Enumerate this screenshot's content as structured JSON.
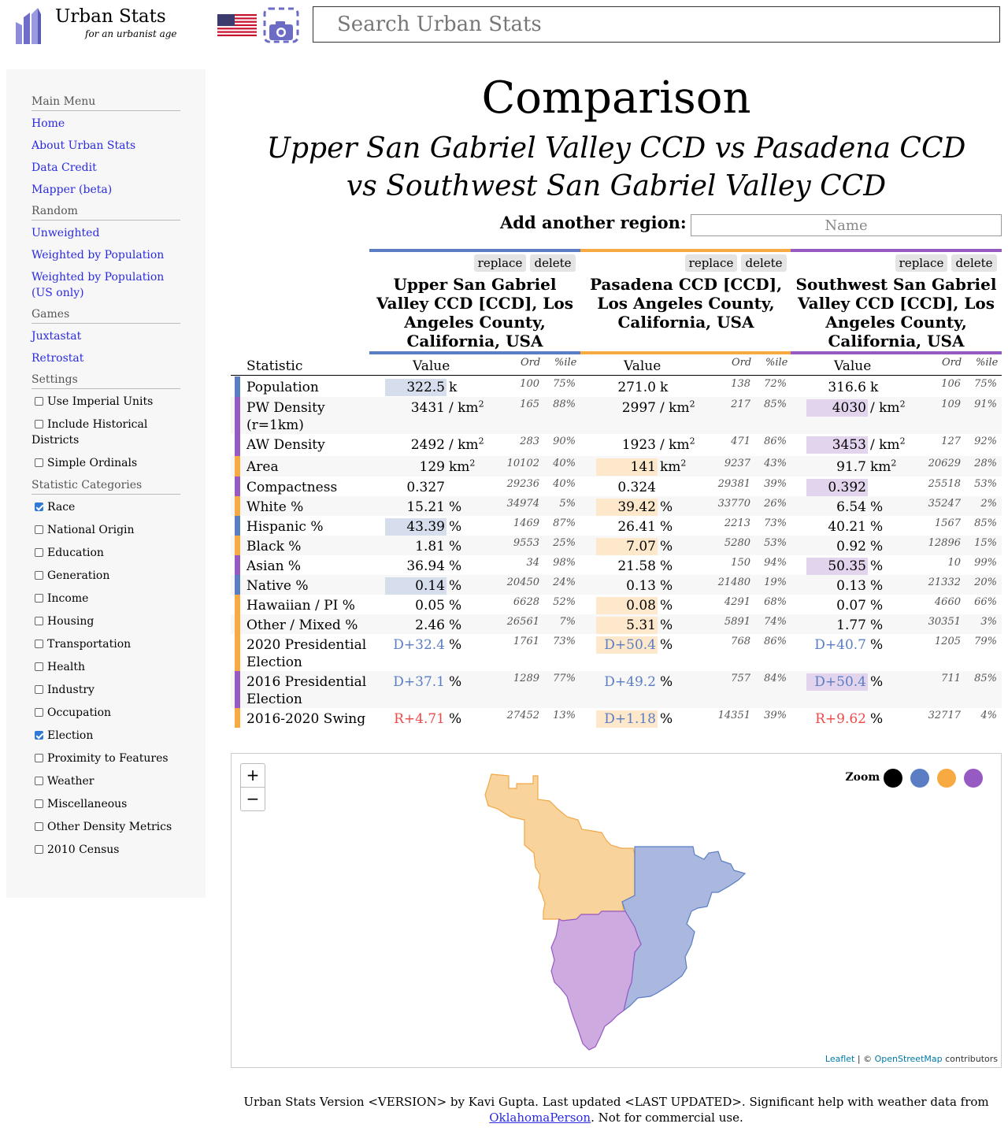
{
  "header": {
    "brand_title": "Urban Stats",
    "brand_subtitle": "for an urbanist age",
    "search_placeholder": "Search Urban Stats"
  },
  "sidebar": {
    "sections": [
      {
        "title": "Main Menu",
        "links": [
          "Home",
          "About Urban Stats",
          "Data Credit",
          "Mapper (beta)"
        ]
      },
      {
        "title": "Random",
        "links": [
          "Unweighted",
          "Weighted by Population",
          "Weighted by Population (US only)"
        ]
      },
      {
        "title": "Games",
        "links": [
          "Juxtastat",
          "Retrostat"
        ]
      }
    ],
    "settings_title": "Settings",
    "settings": [
      {
        "label": "Use Imperial Units",
        "checked": false
      },
      {
        "label": "Include Historical Districts",
        "checked": false
      },
      {
        "label": "Simple Ordinals",
        "checked": false
      }
    ],
    "categories_title": "Statistic Categories",
    "categories": [
      {
        "label": "Race",
        "checked": true
      },
      {
        "label": "National Origin",
        "checked": false
      },
      {
        "label": "Education",
        "checked": false
      },
      {
        "label": "Generation",
        "checked": false
      },
      {
        "label": "Income",
        "checked": false
      },
      {
        "label": "Housing",
        "checked": false
      },
      {
        "label": "Transportation",
        "checked": false
      },
      {
        "label": "Health",
        "checked": false
      },
      {
        "label": "Industry",
        "checked": false
      },
      {
        "label": "Occupation",
        "checked": false
      },
      {
        "label": "Election",
        "checked": true
      },
      {
        "label": "Proximity to Features",
        "checked": false
      },
      {
        "label": "Weather",
        "checked": false
      },
      {
        "label": "Miscellaneous",
        "checked": false
      },
      {
        "label": "Other Density Metrics",
        "checked": false
      },
      {
        "label": "2010 Census",
        "checked": false
      }
    ]
  },
  "main": {
    "title": "Comparison",
    "subtitle": "Upper San Gabriel Valley CCD vs Pasadena CCD vs Southwest San Gabriel Valley CCD",
    "add_region_label": "Add another region:",
    "add_region_placeholder": "Name",
    "replace_label": "replace",
    "delete_label": "delete",
    "columns": [
      {
        "name": "Upper San Gabriel Valley CCD [CCD], Los Angeles County, California, USA",
        "color": "#5a7dc3",
        "highlight": "#d6deed"
      },
      {
        "name": "Pasadena CCD [CCD], Los Angeles County, California, USA",
        "color": "#f7aa41",
        "highlight": "#fde8cc"
      },
      {
        "name": "Southwest San Gabriel Valley CCD [CCD], Los Angeles County, California, USA",
        "color": "#975ac3",
        "highlight": "#e3d4ee"
      }
    ],
    "headers": {
      "statistic": "Statistic",
      "value": "Value",
      "ord": "Ord",
      "pctile": "%ile"
    },
    "rows": [
      {
        "name": "Population",
        "winner": 0,
        "cells": [
          {
            "value": "322.5",
            "unit": "k",
            "ord": "100",
            "pct": "75%"
          },
          {
            "value": "271.0",
            "unit": "k",
            "ord": "138",
            "pct": "72%"
          },
          {
            "value": "316.6",
            "unit": "k",
            "ord": "106",
            "pct": "75%"
          }
        ]
      },
      {
        "name": "PW Density (r=1km)",
        "winner": 2,
        "cells": [
          {
            "value": "3431",
            "unit": "/ km²",
            "ord": "165",
            "pct": "88%"
          },
          {
            "value": "2997",
            "unit": "/ km²",
            "ord": "217",
            "pct": "85%"
          },
          {
            "value": "4030",
            "unit": "/ km²",
            "ord": "109",
            "pct": "91%"
          }
        ]
      },
      {
        "name": "AW Density",
        "winner": 2,
        "cells": [
          {
            "value": "2492",
            "unit": "/ km²",
            "ord": "283",
            "pct": "90%"
          },
          {
            "value": "1923",
            "unit": "/ km²",
            "ord": "471",
            "pct": "86%"
          },
          {
            "value": "3453",
            "unit": "/ km²",
            "ord": "127",
            "pct": "92%"
          }
        ]
      },
      {
        "name": "Area",
        "winner": 1,
        "cells": [
          {
            "value": "129",
            "unit": "km²",
            "ord": "10102",
            "pct": "40%"
          },
          {
            "value": "141",
            "unit": "km²",
            "ord": "9237",
            "pct": "43%"
          },
          {
            "value": "91.7",
            "unit": "km²",
            "ord": "20629",
            "pct": "28%"
          }
        ]
      },
      {
        "name": "Compactness",
        "winner": 2,
        "cells": [
          {
            "value": "0.327",
            "unit": "",
            "ord": "29236",
            "pct": "40%"
          },
          {
            "value": "0.324",
            "unit": "",
            "ord": "29381",
            "pct": "39%"
          },
          {
            "value": "0.392",
            "unit": "",
            "ord": "25518",
            "pct": "53%"
          }
        ]
      },
      {
        "name": "White %",
        "winner": 1,
        "cells": [
          {
            "value": "15.21",
            "unit": "%",
            "ord": "34974",
            "pct": "5%"
          },
          {
            "value": "39.42",
            "unit": "%",
            "ord": "33770",
            "pct": "26%"
          },
          {
            "value": "6.54",
            "unit": "%",
            "ord": "35247",
            "pct": "2%"
          }
        ]
      },
      {
        "name": "Hispanic %",
        "winner": 0,
        "cells": [
          {
            "value": "43.39",
            "unit": "%",
            "ord": "1469",
            "pct": "87%"
          },
          {
            "value": "26.41",
            "unit": "%",
            "ord": "2213",
            "pct": "73%"
          },
          {
            "value": "40.21",
            "unit": "%",
            "ord": "1567",
            "pct": "85%"
          }
        ]
      },
      {
        "name": "Black %",
        "winner": 1,
        "cells": [
          {
            "value": "1.81",
            "unit": "%",
            "ord": "9553",
            "pct": "25%"
          },
          {
            "value": "7.07",
            "unit": "%",
            "ord": "5280",
            "pct": "53%"
          },
          {
            "value": "0.92",
            "unit": "%",
            "ord": "12896",
            "pct": "15%"
          }
        ]
      },
      {
        "name": "Asian %",
        "winner": 2,
        "cells": [
          {
            "value": "36.94",
            "unit": "%",
            "ord": "34",
            "pct": "98%"
          },
          {
            "value": "21.58",
            "unit": "%",
            "ord": "150",
            "pct": "94%"
          },
          {
            "value": "50.35",
            "unit": "%",
            "ord": "10",
            "pct": "99%"
          }
        ]
      },
      {
        "name": "Native %",
        "winner": 0,
        "cells": [
          {
            "value": "0.14",
            "unit": "%",
            "ord": "20450",
            "pct": "24%"
          },
          {
            "value": "0.13",
            "unit": "%",
            "ord": "21480",
            "pct": "19%"
          },
          {
            "value": "0.13",
            "unit": "%",
            "ord": "21332",
            "pct": "20%"
          }
        ]
      },
      {
        "name": "Hawaiian / PI %",
        "winner": 1,
        "cells": [
          {
            "value": "0.05",
            "unit": "%",
            "ord": "6628",
            "pct": "52%"
          },
          {
            "value": "0.08",
            "unit": "%",
            "ord": "4291",
            "pct": "68%"
          },
          {
            "value": "0.07",
            "unit": "%",
            "ord": "4660",
            "pct": "66%"
          }
        ]
      },
      {
        "name": "Other / Mixed %",
        "winner": 1,
        "cells": [
          {
            "value": "2.46",
            "unit": "%",
            "ord": "26561",
            "pct": "7%"
          },
          {
            "value": "5.31",
            "unit": "%",
            "ord": "5891",
            "pct": "74%"
          },
          {
            "value": "1.77",
            "unit": "%",
            "ord": "30351",
            "pct": "3%"
          }
        ]
      },
      {
        "name": "2020 Presidential Election",
        "winner": 1,
        "cells": [
          {
            "value": "D+32.4",
            "unit": "%",
            "ord": "1761",
            "pct": "73%",
            "color": "#5a7dc3"
          },
          {
            "value": "D+50.4",
            "unit": "%",
            "ord": "768",
            "pct": "86%",
            "color": "#5a7dc3"
          },
          {
            "value": "D+40.7",
            "unit": "%",
            "ord": "1205",
            "pct": "79%",
            "color": "#5a7dc3"
          }
        ]
      },
      {
        "name": "2016 Presidential Election",
        "winner": 2,
        "cells": [
          {
            "value": "D+37.1",
            "unit": "%",
            "ord": "1289",
            "pct": "77%",
            "color": "#5a7dc3"
          },
          {
            "value": "D+49.2",
            "unit": "%",
            "ord": "757",
            "pct": "84%",
            "color": "#5a7dc3"
          },
          {
            "value": "D+50.4",
            "unit": "%",
            "ord": "711",
            "pct": "85%",
            "color": "#5a7dc3"
          }
        ]
      },
      {
        "name": "2016-2020 Swing",
        "winner": 1,
        "cells": [
          {
            "value": "R+4.71",
            "unit": "%",
            "ord": "27452",
            "pct": "13%",
            "color": "#ef4a4a"
          },
          {
            "value": "D+1.18",
            "unit": "%",
            "ord": "14351",
            "pct": "39%",
            "color": "#5a7dc3"
          },
          {
            "value": "R+9.62",
            "unit": "%",
            "ord": "32717",
            "pct": "4%",
            "color": "#ef4a4a"
          }
        ]
      }
    ]
  },
  "map": {
    "zoom_in": "+",
    "zoom_out": "−",
    "zoom_to_label": "Zoom to:",
    "zoom_colors": [
      "#000000",
      "#5a7dc3",
      "#f7aa41",
      "#975ac3"
    ],
    "attribution_leaflet": "Leaflet",
    "attribution_sep": " | © ",
    "attribution_osm": "OpenStreetMap",
    "attribution_suffix": " contributors"
  },
  "footer": {
    "text": "Urban Stats Version <VERSION> by Kavi Gupta. Last updated <LAST UPDATED>. Significant help with weather data from ",
    "link": "OklahomaPerson",
    "suffix": ". Not for commercial use."
  }
}
